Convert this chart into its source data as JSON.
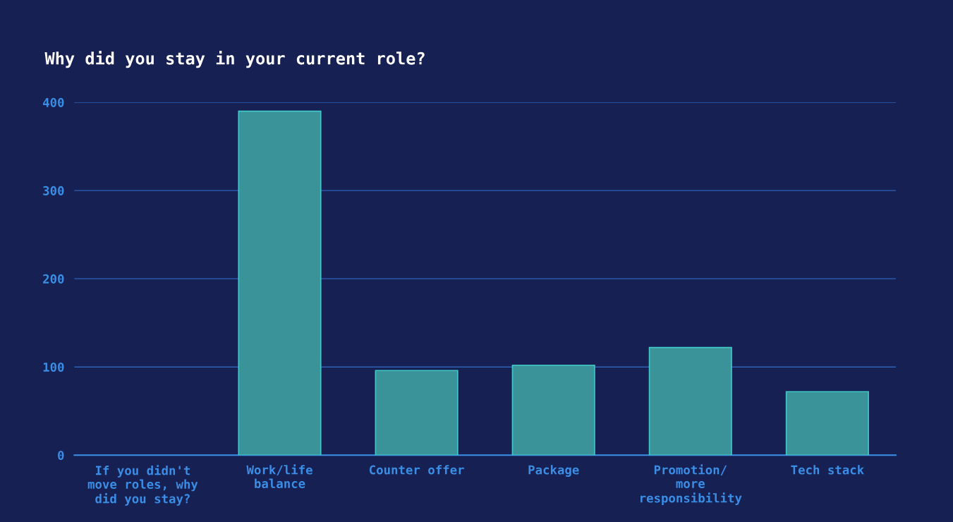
{
  "chart_data": {
    "type": "bar",
    "title": "Why did you stay in your current role?",
    "categories": [
      "If you didn't\nmove roles, why\ndid you stay?",
      "Work/life\nbalance",
      "Counter offer",
      "Package",
      "Promotion/\nmore\nresponsibility",
      "Tech stack"
    ],
    "values": [
      0,
      390,
      96,
      102,
      122,
      72
    ],
    "color": "#3a9398",
    "ylim": [
      0,
      400
    ],
    "yticks": [
      0,
      100,
      200,
      300,
      400
    ],
    "grid": "y"
  }
}
